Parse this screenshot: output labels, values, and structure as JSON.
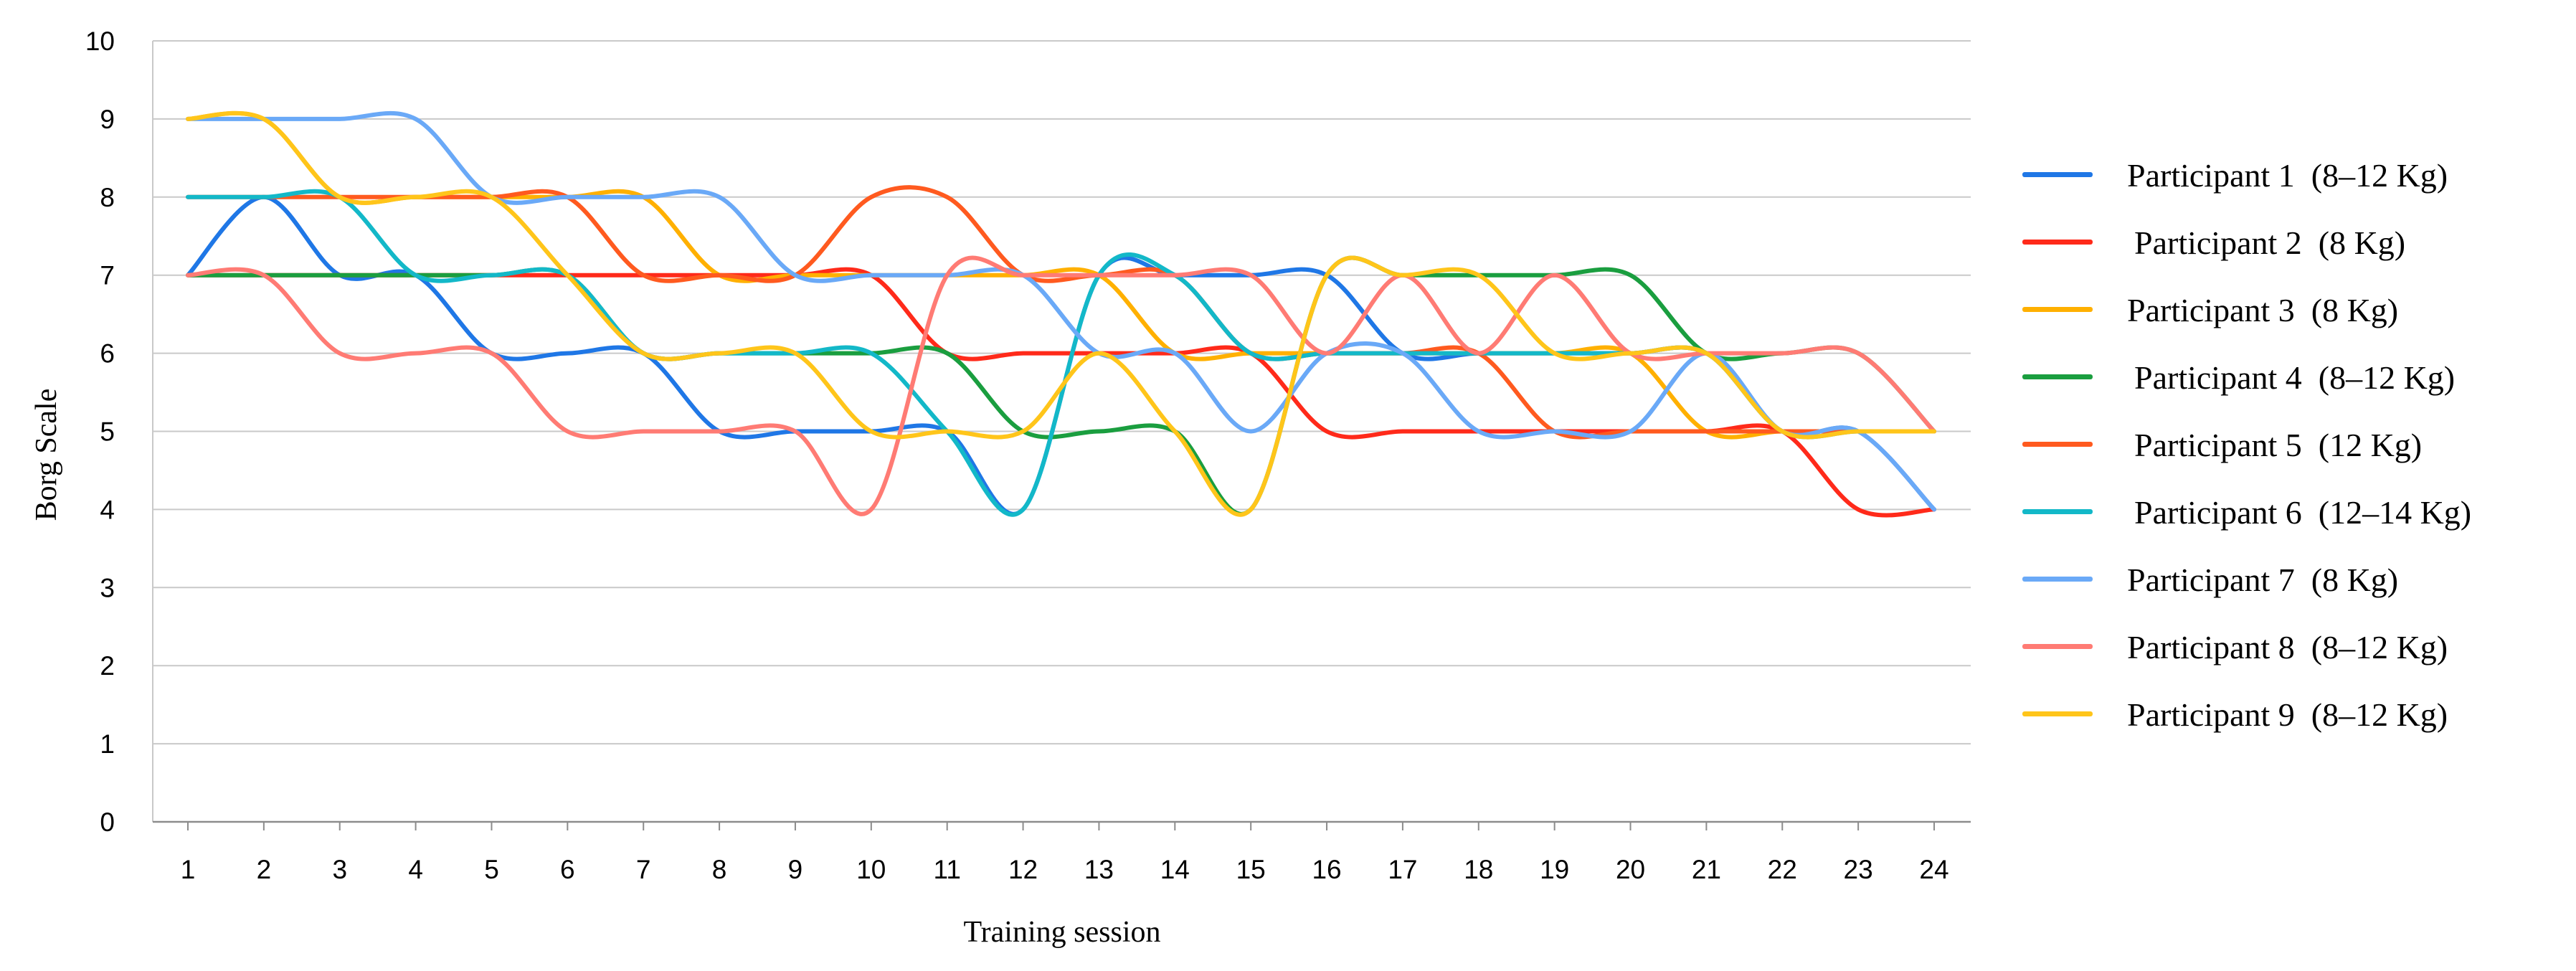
{
  "chart_data": {
    "type": "line",
    "title": "",
    "xlabel": "Training session",
    "ylabel": "Borg Scale",
    "ylim": [
      0,
      10
    ],
    "yticks": [
      "0",
      "1",
      "2",
      "3",
      "4",
      "5",
      "6",
      "7",
      "8",
      "9",
      "10"
    ],
    "categories": [
      "1",
      "2",
      "3",
      "4",
      "5",
      "6",
      "7",
      "8",
      "9",
      "10",
      "11",
      "12",
      "13",
      "14",
      "15",
      "16",
      "17",
      "18",
      "19",
      "20",
      "21",
      "22",
      "23",
      "24"
    ],
    "grid": "horizontal",
    "legend_position": "right",
    "series": [
      {
        "name": "Participant 1  (8–12 Kg)",
        "color": "#1f77e6",
        "values": [
          7,
          8,
          7,
          7,
          6,
          6,
          6,
          5,
          5,
          5,
          5,
          4,
          7,
          7,
          7,
          7,
          6,
          6,
          6,
          6,
          6,
          5,
          5,
          4
        ]
      },
      {
        "name": "Participant 2  (8 Kg)",
        "color": "#ff2a1a",
        "values": [
          7,
          7,
          7,
          7,
          7,
          7,
          7,
          7,
          7,
          7,
          6,
          6,
          6,
          6,
          6,
          5,
          5,
          5,
          5,
          5,
          5,
          5,
          4,
          4
        ]
      },
      {
        "name": "Participant 3  (8 Kg)",
        "color": "#ffb000",
        "values": [
          9,
          9,
          8,
          8,
          8,
          8,
          8,
          7,
          7,
          7,
          7,
          7,
          7,
          6,
          6,
          6,
          6,
          6,
          6,
          6,
          5,
          5,
          5,
          5
        ]
      },
      {
        "name": "Participant 4  (8–12 Kg)",
        "color": "#1a9e3f",
        "values": [
          7,
          7,
          7,
          7,
          7,
          7,
          6,
          6,
          6,
          6,
          6,
          5,
          5,
          5,
          4,
          7,
          7,
          7,
          7,
          7,
          6,
          6,
          6,
          5
        ]
      },
      {
        "name": "Participant 5  (12 Kg)",
        "color": "#ff5a1f",
        "values": [
          8,
          8,
          8,
          8,
          8,
          8,
          7,
          7,
          7,
          8,
          8,
          7,
          7,
          7,
          6,
          6,
          6,
          6,
          5,
          5,
          5,
          5,
          5,
          5
        ]
      },
      {
        "name": "Participant 6  (12–14 Kg)",
        "color": "#13b8c8",
        "values": [
          8,
          8,
          8,
          7,
          7,
          7,
          6,
          6,
          6,
          6,
          5,
          4,
          7,
          7,
          6,
          6,
          6,
          6,
          6,
          6,
          6,
          5,
          5,
          5
        ]
      },
      {
        "name": "Participant 7  (8 Kg)",
        "color": "#6aa9f7",
        "values": [
          9,
          9,
          9,
          9,
          8,
          8,
          8,
          8,
          7,
          7,
          7,
          7,
          6,
          6,
          5,
          6,
          6,
          5,
          5,
          5,
          6,
          5,
          5,
          4
        ]
      },
      {
        "name": "Participant 8  (8–12 Kg)",
        "color": "#ff7b74",
        "values": [
          7,
          7,
          6,
          6,
          6,
          5,
          5,
          5,
          5,
          4,
          7,
          7,
          7,
          7,
          7,
          6,
          7,
          6,
          7,
          6,
          6,
          6,
          6,
          5
        ]
      },
      {
        "name": "Participant 9  (8–12 Kg)",
        "color": "#ffc51a",
        "values": [
          9,
          9,
          8,
          8,
          8,
          7,
          6,
          6,
          6,
          5,
          5,
          5,
          6,
          5,
          4,
          7,
          7,
          7,
          6,
          6,
          6,
          5,
          5,
          5
        ]
      }
    ]
  }
}
